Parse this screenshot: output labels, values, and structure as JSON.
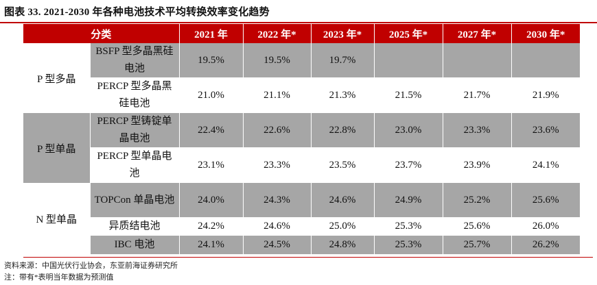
{
  "title": "图表 33. 2021-2030 年各种电池技术平均转换效率变化趋势",
  "header": {
    "category": "分类",
    "years": [
      "2021 年",
      "2022 年*",
      "2023 年*",
      "2025 年*",
      "2027 年*",
      "2030 年*"
    ]
  },
  "groups": [
    {
      "name": "P 型多晶",
      "rows": [
        {
          "name": "BSFP 型多晶黑硅电池",
          "values": [
            "19.5%",
            "19.5%",
            "19.7%",
            "",
            "",
            ""
          ]
        },
        {
          "name": "PERCP 型多晶黑硅电池",
          "values": [
            "21.0%",
            "21.1%",
            "21.3%",
            "21.5%",
            "21.7%",
            "21.9%"
          ]
        }
      ]
    },
    {
      "name": "P 型单晶",
      "rows": [
        {
          "name": "PERCP 型铸锭单晶电池",
          "values": [
            "22.4%",
            "22.6%",
            "22.8%",
            "23.0%",
            "23.3%",
            "23.6%"
          ]
        },
        {
          "name": "PERCP 型单晶电池",
          "values": [
            "23.1%",
            "23.3%",
            "23.5%",
            "23.7%",
            "23.9%",
            "24.1%"
          ]
        }
      ]
    },
    {
      "name": "N 型单晶",
      "rows": [
        {
          "name": "TOPCon 单晶电池",
          "values": [
            "24.0%",
            "24.3%",
            "24.6%",
            "24.9%",
            "25.2%",
            "25.6%"
          ]
        },
        {
          "name": "异质结电池",
          "values": [
            "24.2%",
            "24.6%",
            "25.0%",
            "25.3%",
            "25.6%",
            "26.0%"
          ]
        },
        {
          "name": "IBC 电池",
          "values": [
            "24.1%",
            "24.5%",
            "24.8%",
            "25.3%",
            "25.7%",
            "26.2%"
          ]
        }
      ]
    }
  ],
  "footnotes": {
    "source": "资料来源：中国光伏行业协会，东亚前海证券研究所",
    "note": "注：带有*表明当年数据为预测值"
  },
  "colors": {
    "accent": "#c00000",
    "gray_row": "#a6a6a6"
  }
}
